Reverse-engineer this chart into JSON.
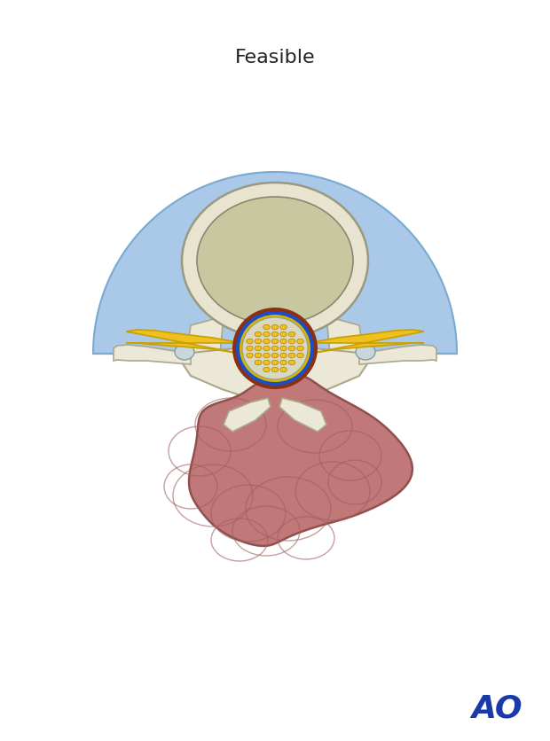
{
  "title": "Feasible",
  "title_fontsize": 16,
  "bg_color": "#ffffff",
  "semicircle_color": "#aac8e8",
  "semicircle_edge": "#7aaad0",
  "vertebral_body_outer_color": "#e8e4d0",
  "vertebral_body_outer_edge": "#999980",
  "vertebral_nucleus_color": "#c8c8a0",
  "vertebral_nucleus_edge": "#888870",
  "blue_ring_color": "#1a4dc8",
  "dark_ring_color": "#8B3010",
  "yellow_nerve_color": "#f0c020",
  "yellow_nerve_edge": "#c8a000",
  "nerve_bg_color": "#d8d8c0",
  "nerve_dot_color": "#f0c020",
  "nerve_dot_edge": "#b08000",
  "bone_color": "#ece8d8",
  "bone_edge": "#aaa888",
  "facet_color": "#c8d8d8",
  "facet_edge": "#8899aa",
  "tumor_color": "#c07878",
  "tumor_edge": "#905050",
  "tumor_dark": "#a06060",
  "ao_color": "#1a3aaa",
  "ao_fontsize": 26
}
